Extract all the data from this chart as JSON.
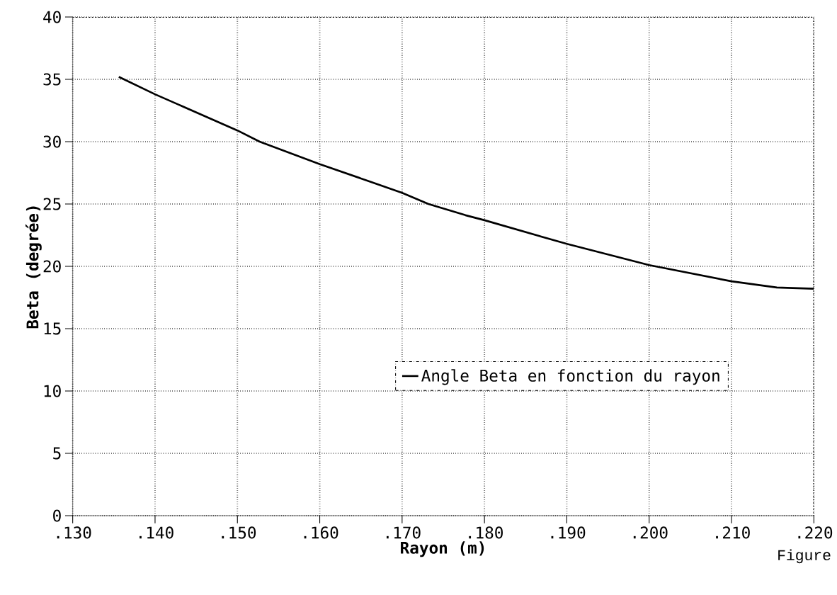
{
  "chart_data": {
    "type": "line",
    "xlabel": "Rayon (m)",
    "ylabel": "Beta (degrée)",
    "x": [
      0.1356,
      0.14,
      0.15,
      0.1527,
      0.16,
      0.17,
      0.1732,
      0.1777,
      0.18,
      0.19,
      0.2,
      0.21,
      0.2155,
      0.22
    ],
    "series": [
      {
        "name": "Angle Beta en fonction du rayon",
        "color": "#000000",
        "values": [
          35.2,
          33.8,
          30.9,
          30.0,
          28.2,
          25.9,
          25.0,
          24.1,
          23.7,
          21.8,
          20.1,
          18.8,
          18.3,
          18.2
        ]
      }
    ],
    "xlim": [
      0.13,
      0.22
    ],
    "xticks": [
      {
        "value": 0.13,
        "label": ".130"
      },
      {
        "value": 0.14,
        "label": ".140"
      },
      {
        "value": 0.15,
        "label": ".150"
      },
      {
        "value": 0.16,
        "label": ".160"
      },
      {
        "value": 0.17,
        "label": ".170"
      },
      {
        "value": 0.18,
        "label": ".180"
      },
      {
        "value": 0.19,
        "label": ".190"
      },
      {
        "value": 0.2,
        "label": ".200"
      },
      {
        "value": 0.21,
        "label": ".210"
      },
      {
        "value": 0.22,
        "label": ".220"
      }
    ],
    "ylim": [
      0,
      40
    ],
    "yticks": [
      0,
      5,
      10,
      15,
      20,
      25,
      30,
      35,
      40
    ],
    "grid": true,
    "legend": "right",
    "line_style": "solid",
    "marker": "none",
    "annotations": [
      "Figure"
    ]
  }
}
